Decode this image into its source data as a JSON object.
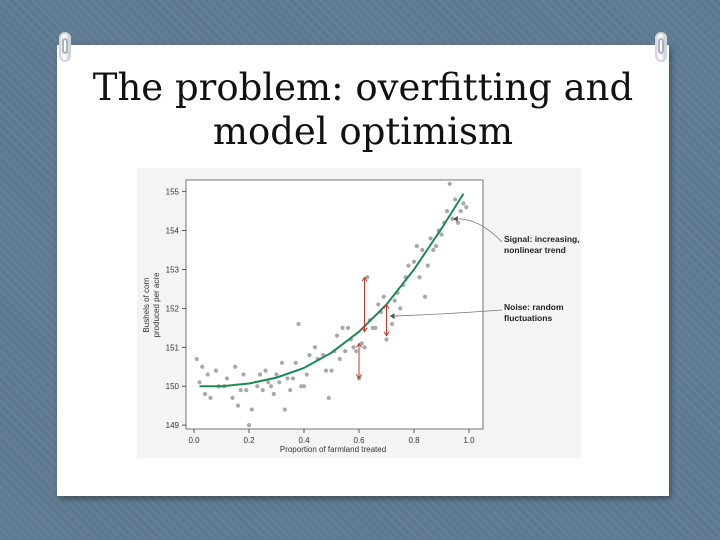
{
  "slide": {
    "title_line1": "The problem: overfitting and",
    "title_line2": "model optimism"
  },
  "chart_data": {
    "type": "scatter",
    "xlabel": "Proportion of farmland treated",
    "ylabel_line1": "Bushels of corn",
    "ylabel_line2": "produced per acre",
    "xlim": [
      0.0,
      1.0
    ],
    "ylim": [
      148.9,
      155.3
    ],
    "xticks": [
      "0.0",
      "0.2",
      "0.4",
      "0.6",
      "0.8",
      "1.0"
    ],
    "yticks": [
      "149",
      "150",
      "151",
      "152",
      "153",
      "154",
      "155"
    ],
    "grid": false,
    "points": [
      [
        0.01,
        150.7
      ],
      [
        0.02,
        150.1
      ],
      [
        0.03,
        150.5
      ],
      [
        0.04,
        149.8
      ],
      [
        0.05,
        150.3
      ],
      [
        0.06,
        149.7
      ],
      [
        0.08,
        150.4
      ],
      [
        0.09,
        150.0
      ],
      [
        0.11,
        150.0
      ],
      [
        0.12,
        150.2
      ],
      [
        0.14,
        149.7
      ],
      [
        0.15,
        150.5
      ],
      [
        0.16,
        149.5
      ],
      [
        0.17,
        149.9
      ],
      [
        0.18,
        150.3
      ],
      [
        0.19,
        149.9
      ],
      [
        0.2,
        149.0
      ],
      [
        0.21,
        149.4
      ],
      [
        0.23,
        150.0
      ],
      [
        0.24,
        150.3
      ],
      [
        0.25,
        149.9
      ],
      [
        0.26,
        150.4
      ],
      [
        0.27,
        150.1
      ],
      [
        0.28,
        150.0
      ],
      [
        0.29,
        149.8
      ],
      [
        0.3,
        150.3
      ],
      [
        0.31,
        150.1
      ],
      [
        0.32,
        150.6
      ],
      [
        0.33,
        149.4
      ],
      [
        0.34,
        150.2
      ],
      [
        0.35,
        149.9
      ],
      [
        0.36,
        150.2
      ],
      [
        0.37,
        150.6
      ],
      [
        0.38,
        151.6
      ],
      [
        0.39,
        150.0
      ],
      [
        0.4,
        150.0
      ],
      [
        0.41,
        150.3
      ],
      [
        0.42,
        150.8
      ],
      [
        0.44,
        151.0
      ],
      [
        0.45,
        150.7
      ],
      [
        0.47,
        150.8
      ],
      [
        0.48,
        150.4
      ],
      [
        0.49,
        149.7
      ],
      [
        0.5,
        150.4
      ],
      [
        0.51,
        150.9
      ],
      [
        0.52,
        151.3
      ],
      [
        0.53,
        150.7
      ],
      [
        0.54,
        151.5
      ],
      [
        0.55,
        150.9
      ],
      [
        0.56,
        151.5
      ],
      [
        0.57,
        151.2
      ],
      [
        0.58,
        151.0
      ],
      [
        0.59,
        150.9
      ],
      [
        0.6,
        150.2
      ],
      [
        0.61,
        151.1
      ],
      [
        0.62,
        151.0
      ],
      [
        0.63,
        152.8
      ],
      [
        0.64,
        151.7
      ],
      [
        0.65,
        151.5
      ],
      [
        0.66,
        151.5
      ],
      [
        0.67,
        152.1
      ],
      [
        0.68,
        151.9
      ],
      [
        0.69,
        152.3
      ],
      [
        0.7,
        151.2
      ],
      [
        0.72,
        151.6
      ],
      [
        0.73,
        152.2
      ],
      [
        0.74,
        152.4
      ],
      [
        0.75,
        152.0
      ],
      [
        0.76,
        152.6
      ],
      [
        0.77,
        152.8
      ],
      [
        0.78,
        153.1
      ],
      [
        0.8,
        153.2
      ],
      [
        0.81,
        153.6
      ],
      [
        0.82,
        152.8
      ],
      [
        0.83,
        153.5
      ],
      [
        0.84,
        152.3
      ],
      [
        0.85,
        153.1
      ],
      [
        0.86,
        153.8
      ],
      [
        0.87,
        153.5
      ],
      [
        0.88,
        153.6
      ],
      [
        0.89,
        154.0
      ],
      [
        0.9,
        153.9
      ],
      [
        0.91,
        154.2
      ],
      [
        0.92,
        154.5
      ],
      [
        0.93,
        155.2
      ],
      [
        0.94,
        154.3
      ],
      [
        0.95,
        154.8
      ],
      [
        0.96,
        154.2
      ],
      [
        0.97,
        154.5
      ],
      [
        0.98,
        154.7
      ],
      [
        0.99,
        154.6
      ]
    ],
    "trend": [
      [
        0.02,
        150.0
      ],
      [
        0.1,
        150.0
      ],
      [
        0.2,
        150.07
      ],
      [
        0.3,
        150.22
      ],
      [
        0.4,
        150.47
      ],
      [
        0.5,
        150.86
      ],
      [
        0.6,
        151.4
      ],
      [
        0.7,
        152.1
      ],
      [
        0.8,
        153.0
      ],
      [
        0.9,
        154.05
      ],
      [
        0.98,
        154.95
      ]
    ],
    "residuals": [
      [
        0.62,
        152.8,
        151.4
      ],
      [
        0.6,
        151.1,
        150.2
      ],
      [
        0.7,
        152.1,
        151.3
      ]
    ],
    "annotations": [
      {
        "line1": "Signal: increasing,",
        "line2": "nonlinear trend",
        "target": [
          0.93,
          154.3
        ]
      },
      {
        "line1": "Noise: random",
        "line2": "fluctuations",
        "target": [
          0.7,
          151.8
        ]
      }
    ],
    "colors": {
      "points": "#a9a9a9",
      "trend": "#1d8a55",
      "residual": "#c0392b",
      "axis": "#333333"
    }
  }
}
